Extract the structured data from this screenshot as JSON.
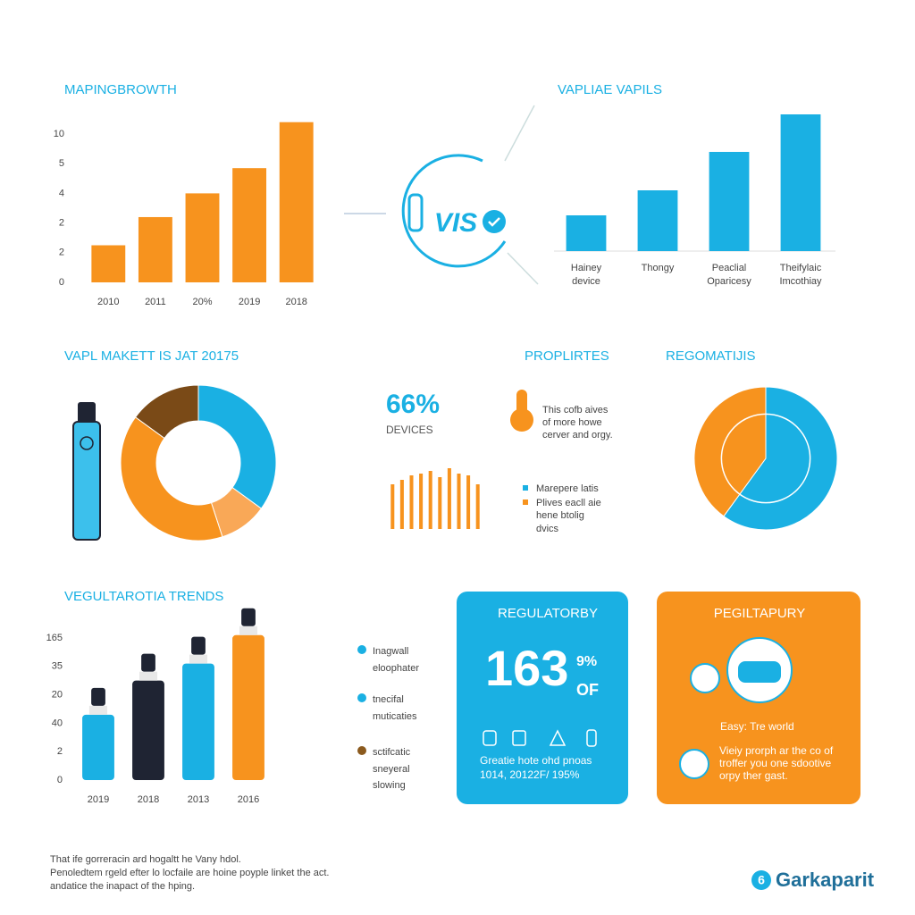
{
  "chart_data": [
    {
      "type": "bar",
      "title": "MAPINGBROWTH",
      "categories": [
        "2010",
        "2011",
        "20%",
        "2019",
        "2018"
      ],
      "values": [
        2.5,
        4.4,
        6,
        7.7,
        10.8
      ],
      "color": "#f7931e",
      "ylim": [
        0,
        11
      ],
      "yticks": [
        0,
        2,
        {
          "value": 4,
          "label": "2"
        },
        {
          "value": 6,
          "label": "4"
        },
        {
          "value": 8,
          "label": "5"
        },
        10
      ]
    },
    {
      "type": "bar",
      "title": "VAPLIAE VAPILS",
      "categories": [
        "Hainey\ndevice",
        "Thongy",
        "Peaclial\nOparicesy",
        "Theifylaic\nImcothiay"
      ],
      "values": [
        40,
        68,
        111,
        153
      ],
      "color": "#1ab0e3"
    },
    {
      "type": "donut",
      "title": "VAPL MAKETT IS JAT 20175",
      "values": [
        35,
        10,
        40,
        15
      ],
      "colors": [
        "#1ab0e3",
        "#f9a857",
        "#f7931e",
        "#7a4a17"
      ]
    },
    {
      "type": "bar",
      "title": "PROPLIRTES",
      "stat": "66%",
      "stat_label": "DEVICES",
      "note": "This cofb aives\nof more howe\ncerver and orgy.",
      "categories": [
        null,
        null,
        null,
        null,
        null,
        null,
        null,
        null,
        null,
        null
      ],
      "values": [
        50,
        55,
        60,
        62,
        65,
        58,
        68,
        62,
        60,
        50
      ],
      "color": "#f7931e",
      "legend": [
        {
          "name": "Marepere latis",
          "color": "#1ab0e3"
        },
        {
          "name": "Plives eacll aie\nhene btolig\ndvics",
          "color": "#f7931e"
        }
      ]
    },
    {
      "type": "pie",
      "title": "REGOMATIJIS",
      "values": [
        60,
        40
      ],
      "colors": [
        "#1ab0e3",
        "#f7931e"
      ]
    },
    {
      "type": "bar",
      "title": "VEGULTAROTIA TRENDS",
      "categories": [
        "2019",
        "2018",
        "2013",
        "2016"
      ],
      "values": [
        2.3,
        3.5,
        4.1,
        5.1
      ],
      "colors": [
        "#1ab0e3",
        "#1f2433",
        "#1ab0e3",
        "#f7931e"
      ],
      "ylim": [
        0,
        5.2
      ],
      "yticks": [
        0,
        {
          "value": 1,
          "label": "2"
        },
        {
          "value": 2,
          "label": "40"
        },
        {
          "value": 3,
          "label": "20"
        },
        {
          "value": 4,
          "label": "35"
        },
        {
          "value": 5,
          "label": "165"
        }
      ],
      "legend": [
        {
          "name": "Inagwall\neloophater",
          "color": "#1ab0e3"
        },
        {
          "name": "tnecifal\nmuticaties",
          "color": "#1ab0e3"
        },
        {
          "name": "sctifcatic\nsneyeral\nslowing",
          "color": "#8b5a1e"
        }
      ]
    }
  ],
  "diagram_label": "VIS",
  "cards": [
    {
      "title": "REGULATORBY",
      "stat": "163",
      "stat_suffix": "9%",
      "stat_unit": "OF",
      "text": "Greatie hote ohd pnoas\n1014, 20122F/ 195%"
    },
    {
      "title": "PEGILTAPURY",
      "subtitle": "Easy: Tre world",
      "text": "Vieiy prorph ar the co of\ntroffer you one sdootive\norpy ther gast."
    }
  ],
  "footer": {
    "text": "That ife gorreracin ard hogaltt he Vany hdol.\nPenoledtem rgeld efter lo locfaile are hoine poyple linket the act.\nandatice the inapact of the hping.",
    "logo_badge": "6",
    "logo": "Garkaparit"
  }
}
